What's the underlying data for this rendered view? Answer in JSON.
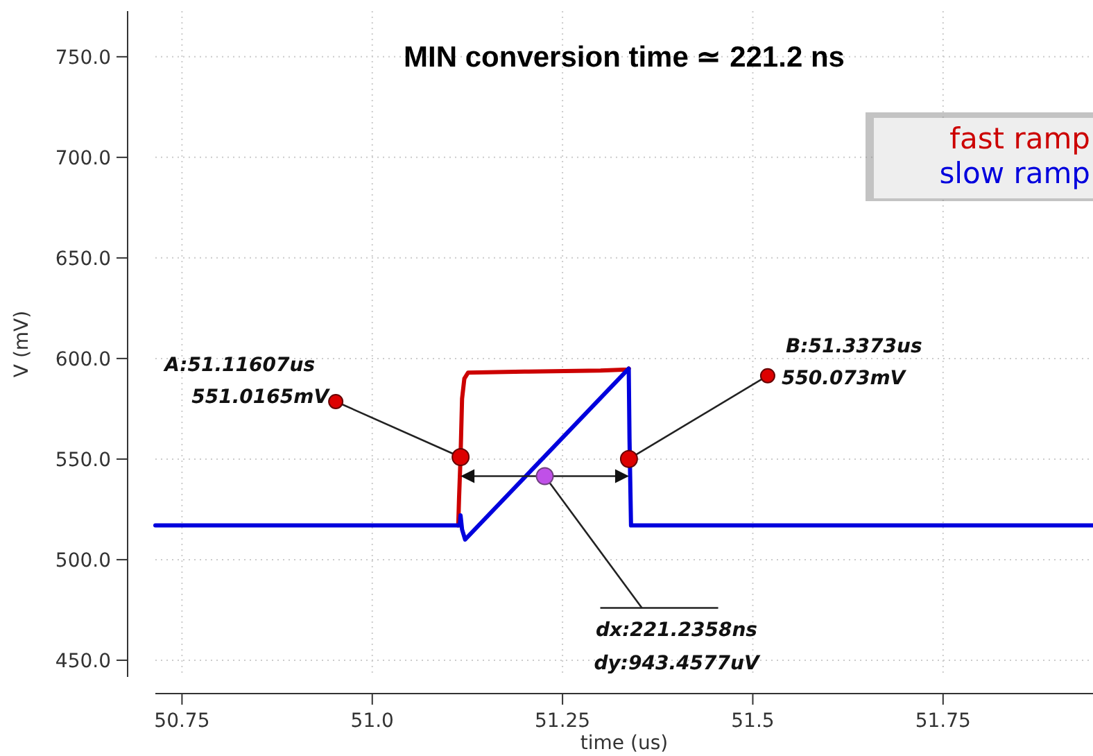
{
  "chart_data": {
    "type": "line",
    "title": "MIN conversion time ≃ 221.2 ns",
    "xlabel": "time (us)",
    "ylabel": "V (mV)",
    "xlim": [
      50.715,
      51.947
    ],
    "ylim": [
      441.7,
      772.7
    ],
    "xticks": [
      {
        "value": 50.75,
        "label": "50.75"
      },
      {
        "value": 51.0,
        "label": "51.0"
      },
      {
        "value": 51.25,
        "label": "51.25"
      },
      {
        "value": 51.5,
        "label": "51.5"
      },
      {
        "value": 51.75,
        "label": "51.75"
      }
    ],
    "yticks": [
      {
        "value": 450,
        "label": "450.0"
      },
      {
        "value": 500,
        "label": "500.0"
      },
      {
        "value": 550,
        "label": "550.0"
      },
      {
        "value": 600,
        "label": "600.0"
      },
      {
        "value": 650,
        "label": "650.0"
      },
      {
        "value": 700,
        "label": "700.0"
      },
      {
        "value": 750,
        "label": "750.0"
      }
    ],
    "grid": true,
    "legend": "top right",
    "marker": "none",
    "line_style": "solid",
    "series": [
      {
        "name": "fast ramp",
        "color": "#cc0000",
        "x": [
          51.113,
          51.114,
          51.116,
          51.118,
          51.121,
          51.126,
          51.2,
          51.3,
          51.336,
          51.337
        ],
        "values": [
          517,
          530,
          551,
          580,
          590,
          593,
          593.5,
          594,
          594.5,
          595
        ]
      },
      {
        "name": "slow ramp",
        "color": "#0000dd",
        "x": [
          50.715,
          51.115,
          51.116,
          51.118,
          51.122,
          51.337,
          51.338,
          51.34,
          51.947
        ],
        "values": [
          517,
          517,
          522,
          515,
          510,
          595,
          560,
          517,
          517
        ]
      }
    ],
    "annotations": [
      {
        "text": "A:51.11607us\n551.0165mV",
        "x": 51.11607,
        "y": 551.0165
      },
      {
        "text": "B:51.3373us\n550.073mV",
        "x": 51.3373,
        "y": 550.073
      },
      {
        "text": "dx:221.2358ns\ndy:943.4577uV",
        "x": 51.2267,
        "y": 541.5
      }
    ]
  }
}
